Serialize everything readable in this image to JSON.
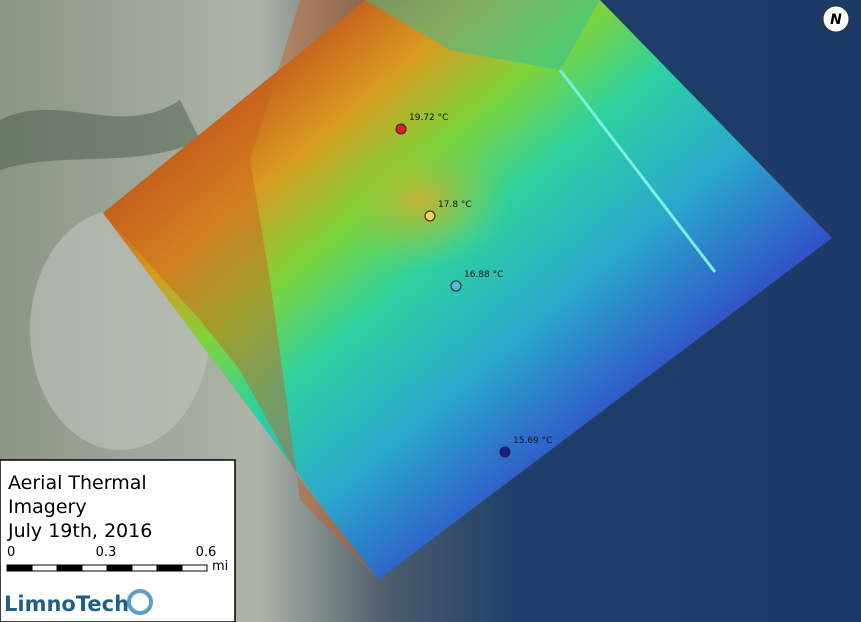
{
  "legend": {
    "title_lines": [
      "Aerial Thermal",
      "Imagery",
      "July 19th, 2016"
    ],
    "scale_labels": [
      "0",
      "0.3",
      "0.6"
    ],
    "scale_unit": "mi",
    "logo": "LimnoTech"
  },
  "north": "N",
  "points": [
    {
      "label": "19.72 °C",
      "color": "#e8201c"
    },
    {
      "label": "17.8 °C",
      "color": "#f2d060"
    },
    {
      "label": "16.88 °C",
      "color": "#5ab8e0"
    },
    {
      "label": "15.69 °C",
      "color": "#1c1c8a"
    }
  ]
}
